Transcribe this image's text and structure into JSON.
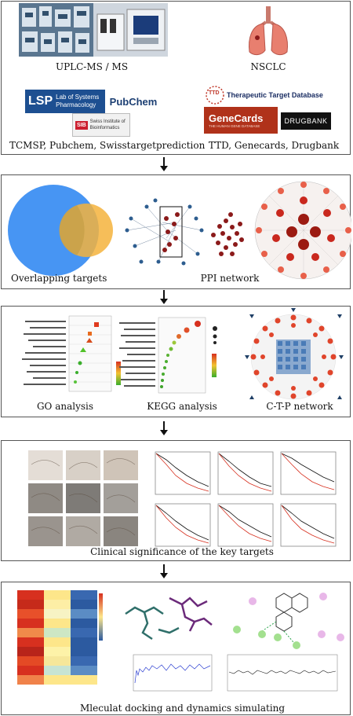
{
  "panel1": {
    "uplc_label": "UPLC-MS / MS",
    "nsclc_label": "NSCLC",
    "logos_left": {
      "lsp_mark": "LSP",
      "lsp_text_1": "Lab of Systems",
      "lsp_text_2": "Pharmacology",
      "pubchem": "PubChem",
      "sib_mark": "SIB",
      "sib_text_1": "Swiss Institute of",
      "sib_text_2": "Bioinformatics"
    },
    "logos_right": {
      "ttd_mark": "TTD",
      "ttd_text": "Therapeutic Target Database",
      "genecards": "GeneCards",
      "genecards_sub": "THE HUMAN GENE DATABASE",
      "drugbank": "DRUGBANK"
    },
    "left_caption": "TCMSP, Pubchem, Swisstargetprediction",
    "right_caption": "TTD, Genecards, Drugbank"
  },
  "panel2": {
    "overlap_label": "Overlapping targets",
    "ppi_label": "PPI network"
  },
  "panel3": {
    "go_label": "GO analysis",
    "kegg_label": "KEGG analysis",
    "ctp_label": "C-T-P network"
  },
  "panel4": {
    "clinical_label": "Clinical significance of the key targets"
  },
  "panel5": {
    "docking_label": "Mleculat docking and dynamics simulating"
  },
  "colors": {
    "venn_left": "#3d8ff2",
    "venn_right": "#f5b33c",
    "network_node": "#8b1a1a",
    "network_edge": "#1f3f66",
    "ctp_red": "#e0452b",
    "ctp_blue": "#4a7bb7",
    "heat_red": "#d7301f",
    "heat_blue": "#2c5aa0",
    "heat_yellow": "#fde68a",
    "drugbank_bg": "#111111",
    "genecards_bg": "#b0321a"
  }
}
